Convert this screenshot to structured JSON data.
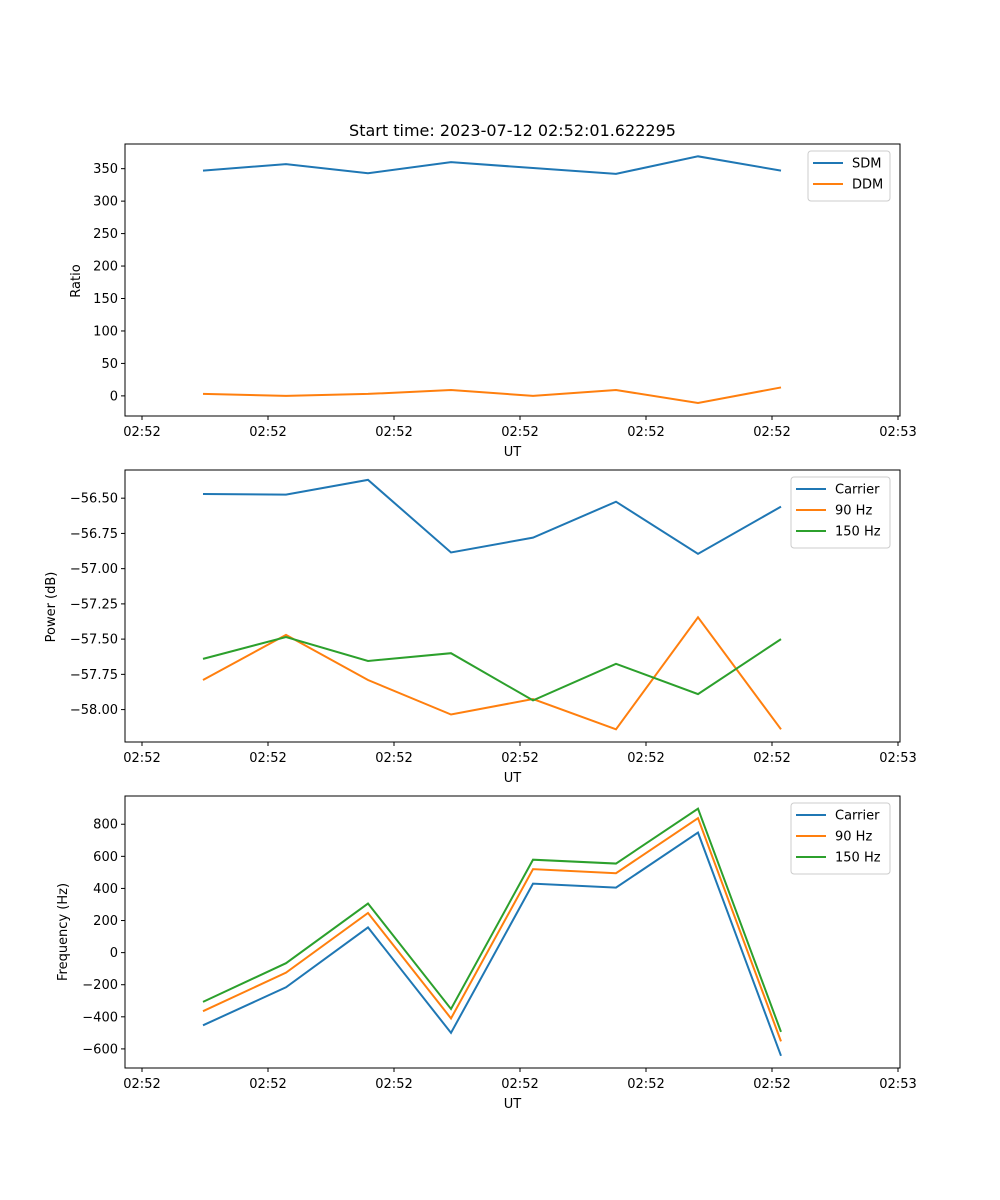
{
  "chart_data": [
    {
      "type": "line",
      "title": "Start time: 2023-07-12 02:52:01.622295",
      "xlabel": "UT",
      "ylabel": "Ratio",
      "x_tick_labels": [
        "02:52",
        "02:52",
        "02:52",
        "02:52",
        "02:52",
        "02:52",
        "02:53"
      ],
      "y_ticks": [
        0,
        50,
        100,
        150,
        200,
        250,
        300,
        350
      ],
      "ylim": [
        -31,
        388
      ],
      "legend_location": "top-right",
      "series": [
        {
          "name": "SDM",
          "color": "#1f77b4",
          "values": [
            347,
            357,
            343,
            360,
            351,
            342,
            369,
            347
          ]
        },
        {
          "name": "DDM",
          "color": "#ff7f0e",
          "values": [
            3,
            0,
            3,
            9,
            0,
            9,
            -11,
            13
          ]
        }
      ]
    },
    {
      "type": "line",
      "title": "",
      "xlabel": "UT",
      "ylabel": "Power (dB)",
      "x_tick_labels": [
        "02:52",
        "02:52",
        "02:52",
        "02:52",
        "02:52",
        "02:52",
        "02:53"
      ],
      "y_ticks": [
        -58.0,
        -57.75,
        -57.5,
        -57.25,
        -57.0,
        -56.75,
        -56.5
      ],
      "y_tick_labels": [
        "−58.00",
        "−57.75",
        "−57.50",
        "−57.25",
        "−57.00",
        "−56.75",
        "−56.50"
      ],
      "ylim": [
        -58.23,
        -56.3
      ],
      "legend_location": "top-right",
      "series": [
        {
          "name": "Carrier",
          "color": "#1f77b4",
          "values": [
            -56.47,
            -56.475,
            -56.37,
            -56.885,
            -56.78,
            -56.525,
            -56.895,
            -56.56
          ]
        },
        {
          "name": "90 Hz",
          "color": "#ff7f0e",
          "values": [
            -57.79,
            -57.47,
            -57.79,
            -58.035,
            -57.925,
            -58.14,
            -57.345,
            -58.14
          ]
        },
        {
          "name": "150 Hz",
          "color": "#2ca02c",
          "values": [
            -57.64,
            -57.485,
            -57.655,
            -57.6,
            -57.935,
            -57.675,
            -57.89,
            -57.5
          ]
        }
      ]
    },
    {
      "type": "line",
      "title": "",
      "xlabel": "UT",
      "ylabel": "Frequency (Hz)",
      "x_tick_labels": [
        "02:52",
        "02:52",
        "02:52",
        "02:52",
        "02:52",
        "02:52",
        "02:53"
      ],
      "y_ticks": [
        -600,
        -400,
        -200,
        0,
        200,
        400,
        600,
        800
      ],
      "y_tick_labels": [
        "−600",
        "−400",
        "−200",
        "0",
        "200",
        "400",
        "600",
        "800"
      ],
      "ylim": [
        -719,
        976
      ],
      "legend_location": "top-right",
      "series": [
        {
          "name": "Carrier",
          "color": "#1f77b4",
          "values": [
            -453,
            -216,
            157,
            -500,
            430,
            405,
            748,
            -643
          ]
        },
        {
          "name": "90 Hz",
          "color": "#ff7f0e",
          "values": [
            -365,
            -125,
            247,
            -410,
            520,
            495,
            838,
            -553
          ]
        },
        {
          "name": "150 Hz",
          "color": "#2ca02c",
          "values": [
            -307,
            -66,
            306,
            -351,
            579,
            555,
            897,
            -494
          ]
        }
      ]
    }
  ]
}
